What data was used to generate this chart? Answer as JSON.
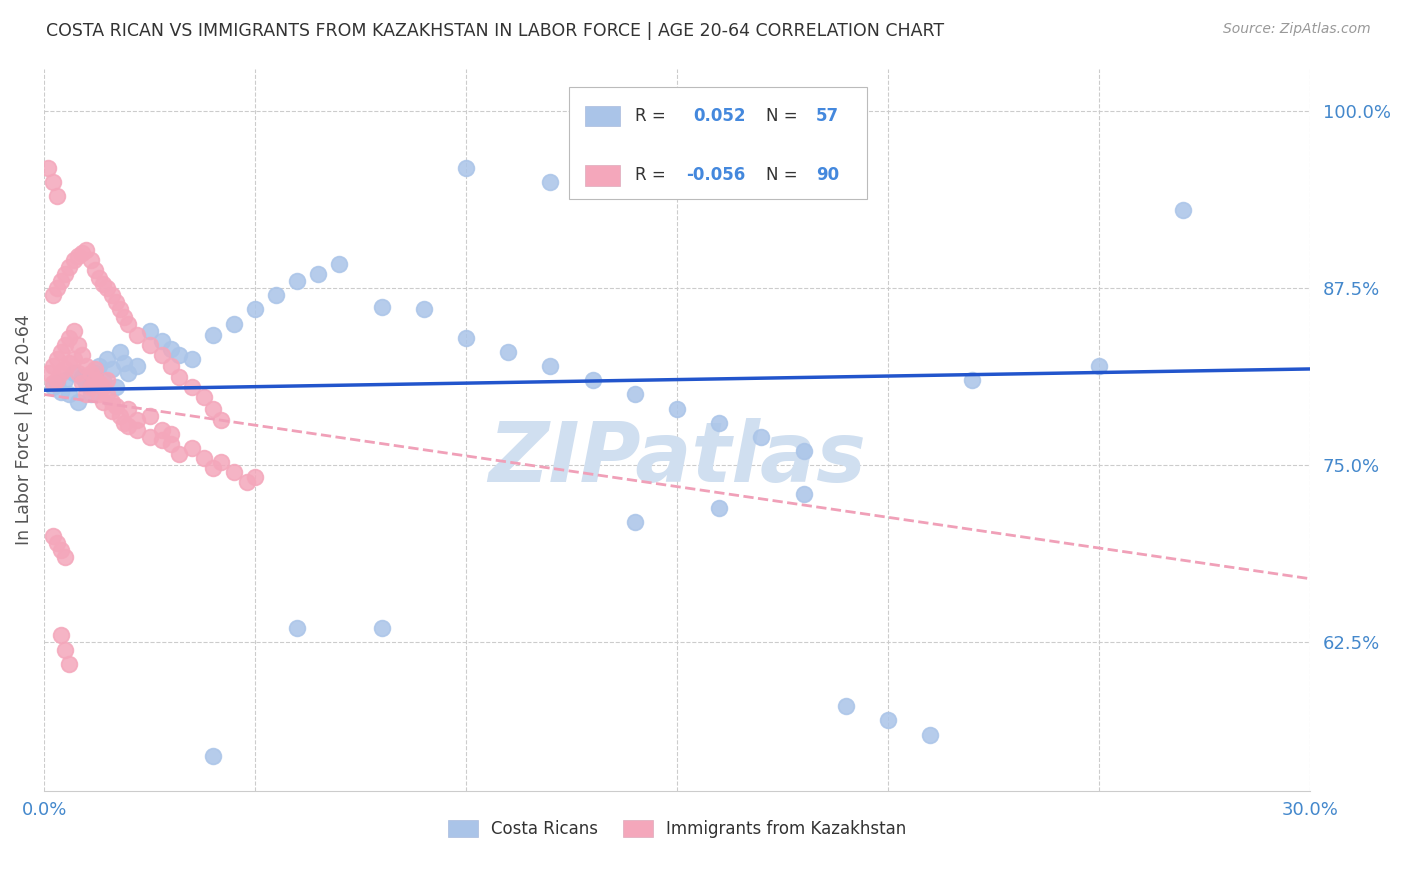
{
  "title": "COSTA RICAN VS IMMIGRANTS FROM KAZAKHSTAN IN LABOR FORCE | AGE 20-64 CORRELATION CHART",
  "source": "Source: ZipAtlas.com",
  "ylabel": "In Labor Force | Age 20-64",
  "xlim": [
    0.0,
    0.3
  ],
  "ylim": [
    0.52,
    1.03
  ],
  "yticks": [
    0.625,
    0.75,
    0.875,
    1.0
  ],
  "ytick_labels": [
    "62.5%",
    "75.0%",
    "87.5%",
    "100.0%"
  ],
  "xticks": [
    0.0,
    0.05,
    0.1,
    0.15,
    0.2,
    0.25,
    0.3
  ],
  "legend_blue_r": "0.052",
  "legend_blue_n": "57",
  "legend_pink_r": "-0.056",
  "legend_pink_n": "90",
  "legend_label_blue": "Costa Ricans",
  "legend_label_pink": "Immigrants from Kazakhstan",
  "blue_color": "#aac4e8",
  "pink_color": "#f4a7bb",
  "blue_line_color": "#2255cc",
  "pink_line_color": "#f0a0b8",
  "r_value_color": "#4488dd",
  "title_color": "#333333",
  "axis_tick_color": "#4488cc",
  "watermark": "ZIPatlas",
  "watermark_color": "#d0dff0",
  "background_color": "#ffffff",
  "grid_color": "#cccccc",
  "blue_scatter_x": [
    0.002,
    0.003,
    0.004,
    0.005,
    0.006,
    0.007,
    0.008,
    0.009,
    0.01,
    0.011,
    0.012,
    0.013,
    0.014,
    0.015,
    0.016,
    0.017,
    0.018,
    0.019,
    0.02,
    0.022,
    0.025,
    0.028,
    0.03,
    0.032,
    0.035,
    0.04,
    0.045,
    0.05,
    0.055,
    0.06,
    0.065,
    0.07,
    0.08,
    0.09,
    0.1,
    0.11,
    0.12,
    0.13,
    0.14,
    0.15,
    0.16,
    0.17,
    0.18,
    0.19,
    0.2,
    0.21,
    0.14,
    0.16,
    0.18,
    0.27,
    0.25,
    0.22,
    0.1,
    0.12,
    0.08,
    0.06,
    0.04
  ],
  "blue_scatter_y": [
    0.805,
    0.808,
    0.802,
    0.81,
    0.8,
    0.815,
    0.795,
    0.812,
    0.808,
    0.8,
    0.815,
    0.82,
    0.81,
    0.825,
    0.818,
    0.805,
    0.83,
    0.822,
    0.815,
    0.82,
    0.845,
    0.838,
    0.832,
    0.828,
    0.825,
    0.842,
    0.85,
    0.86,
    0.87,
    0.88,
    0.885,
    0.892,
    0.862,
    0.86,
    0.84,
    0.83,
    0.82,
    0.81,
    0.8,
    0.79,
    0.78,
    0.77,
    0.76,
    0.58,
    0.57,
    0.56,
    0.71,
    0.72,
    0.73,
    0.93,
    0.82,
    0.81,
    0.96,
    0.95,
    0.635,
    0.635,
    0.545
  ],
  "pink_scatter_x": [
    0.001,
    0.002,
    0.002,
    0.003,
    0.003,
    0.004,
    0.004,
    0.005,
    0.005,
    0.006,
    0.006,
    0.007,
    0.007,
    0.008,
    0.008,
    0.009,
    0.009,
    0.01,
    0.01,
    0.011,
    0.011,
    0.012,
    0.012,
    0.013,
    0.013,
    0.014,
    0.014,
    0.015,
    0.015,
    0.016,
    0.016,
    0.017,
    0.018,
    0.019,
    0.02,
    0.02,
    0.022,
    0.022,
    0.025,
    0.025,
    0.028,
    0.028,
    0.03,
    0.03,
    0.032,
    0.035,
    0.038,
    0.04,
    0.042,
    0.045,
    0.048,
    0.05,
    0.002,
    0.003,
    0.004,
    0.005,
    0.006,
    0.007,
    0.008,
    0.009,
    0.01,
    0.011,
    0.012,
    0.013,
    0.014,
    0.015,
    0.016,
    0.017,
    0.018,
    0.019,
    0.02,
    0.022,
    0.025,
    0.028,
    0.03,
    0.032,
    0.035,
    0.038,
    0.04,
    0.042,
    0.001,
    0.002,
    0.003,
    0.004,
    0.005,
    0.006,
    0.002,
    0.003,
    0.004,
    0.005
  ],
  "pink_scatter_y": [
    0.815,
    0.82,
    0.808,
    0.825,
    0.81,
    0.83,
    0.815,
    0.835,
    0.818,
    0.84,
    0.822,
    0.845,
    0.825,
    0.835,
    0.815,
    0.828,
    0.808,
    0.82,
    0.8,
    0.815,
    0.805,
    0.818,
    0.81,
    0.808,
    0.8,
    0.795,
    0.805,
    0.81,
    0.8,
    0.795,
    0.788,
    0.792,
    0.785,
    0.78,
    0.79,
    0.778,
    0.782,
    0.775,
    0.785,
    0.77,
    0.775,
    0.768,
    0.772,
    0.765,
    0.758,
    0.762,
    0.755,
    0.748,
    0.752,
    0.745,
    0.738,
    0.742,
    0.87,
    0.875,
    0.88,
    0.885,
    0.89,
    0.895,
    0.898,
    0.9,
    0.902,
    0.895,
    0.888,
    0.882,
    0.878,
    0.875,
    0.87,
    0.865,
    0.86,
    0.855,
    0.85,
    0.842,
    0.835,
    0.828,
    0.82,
    0.812,
    0.805,
    0.798,
    0.79,
    0.782,
    0.96,
    0.95,
    0.94,
    0.63,
    0.62,
    0.61,
    0.7,
    0.695,
    0.69,
    0.685
  ]
}
